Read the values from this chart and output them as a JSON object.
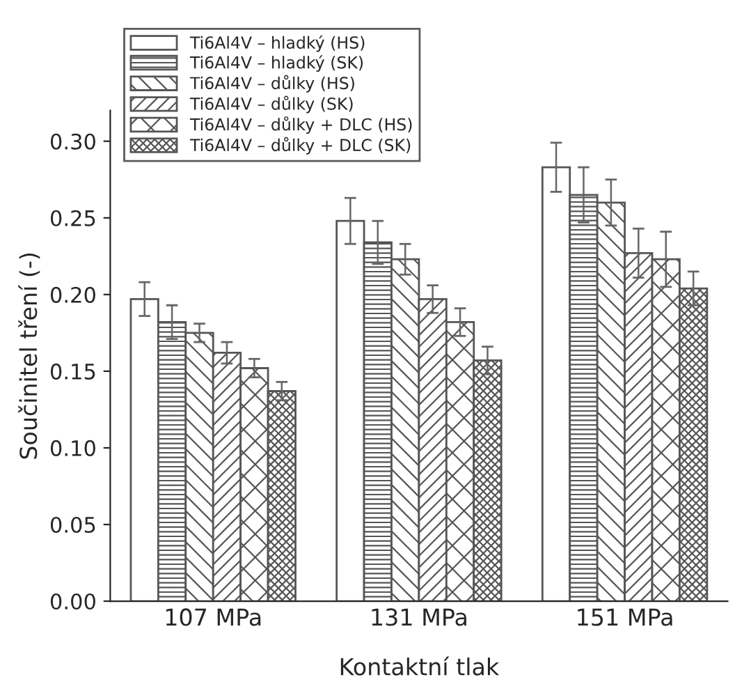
{
  "chart_data": {
    "type": "bar",
    "xlabel": "Kontaktní tlak",
    "ylabel": "Součinitel tření (-)",
    "categories": [
      "107 MPa",
      "131 MPa",
      "151 MPa"
    ],
    "series": [
      {
        "name": "Ti6Al4V – hladký (HS)",
        "color": "#ffffff",
        "values": [
          0.197,
          0.248,
          0.283
        ],
        "errors": [
          0.011,
          0.015,
          0.016
        ]
      },
      {
        "name": "Ti6Al4V – hladký (SK)",
        "color": "#555555",
        "values": [
          0.182,
          0.234,
          0.265
        ],
        "errors": [
          0.011,
          0.014,
          0.018
        ]
      },
      {
        "name": "Ti6Al4V – důlky (HS)",
        "color": "#555555",
        "values": [
          0.175,
          0.223,
          0.26
        ],
        "errors": [
          0.006,
          0.01,
          0.015
        ]
      },
      {
        "name": "Ti6Al4V – důlky (SK)",
        "color": "#555555",
        "values": [
          0.162,
          0.197,
          0.227
        ],
        "errors": [
          0.007,
          0.009,
          0.016
        ]
      },
      {
        "name": "Ti6Al4V – důlky + DLC (HS)",
        "color": "#555555",
        "values": [
          0.152,
          0.182,
          0.223
        ],
        "errors": [
          0.006,
          0.009,
          0.018
        ]
      },
      {
        "name": "Ti6Al4V – důlky + DLC (SK)",
        "color": "#555555",
        "values": [
          0.137,
          0.157,
          0.204
        ],
        "errors": [
          0.006,
          0.009,
          0.011
        ]
      }
    ],
    "ylim": [
      0,
      0.32
    ],
    "yticks": [
      {
        "value": 0,
        "label": "0.00"
      },
      {
        "value": 0.05,
        "label": "0.05"
      },
      {
        "value": 0.1,
        "label": "0.10"
      },
      {
        "value": 0.15,
        "label": "0.15"
      },
      {
        "value": 0.2,
        "label": "0.20"
      },
      {
        "value": 0.25,
        "label": "0.25"
      },
      {
        "value": 0.3,
        "label": "0.30"
      }
    ],
    "grid": false,
    "legend": "top left"
  }
}
